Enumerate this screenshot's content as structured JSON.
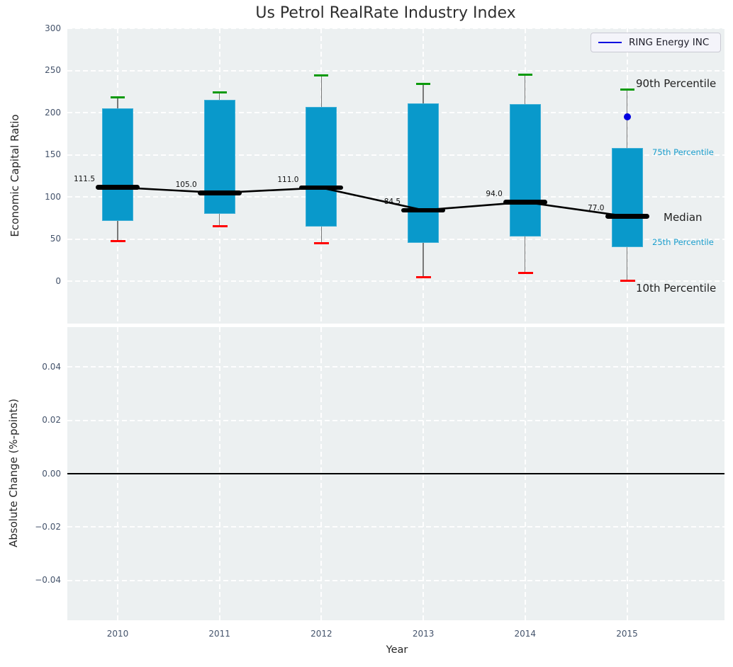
{
  "figure": {
    "title": "Us Petrol RealRate Industry Index",
    "legend": {
      "label": "RING Energy INC",
      "line_color": "#0000e0"
    },
    "top_axis": {
      "ylabel": "Economic Capital Ratio",
      "yticks": [
        {
          "label": "300",
          "value": 300
        },
        {
          "label": "250",
          "value": 250
        },
        {
          "label": "200",
          "value": 200
        },
        {
          "label": "150",
          "value": 150
        },
        {
          "label": "100",
          "value": 100
        },
        {
          "label": "50",
          "value": 50
        },
        {
          "label": "0",
          "value": 0
        }
      ]
    },
    "bottom_axis": {
      "ylabel": "Absolute Change (%-points)",
      "yticks": [
        {
          "label": "0.04",
          "value": 0.04
        },
        {
          "label": "0.02",
          "value": 0.02
        },
        {
          "label": "0.00",
          "value": 0
        },
        {
          "label": "−0.02",
          "value": -0.02
        },
        {
          "label": "−0.04",
          "value": -0.04
        }
      ]
    },
    "xlabel": "Year",
    "annotations": [
      {
        "text": "90th Percentile",
        "anchor": "p90",
        "color": "#1f1f1f",
        "size": 15
      },
      {
        "text": "75th Percentile",
        "anchor": "p75",
        "color": "#1b9ecd",
        "size": 11.5
      },
      {
        "text": "Median",
        "anchor": "median",
        "color": "#1f1f1f",
        "size": 15
      },
      {
        "text": "25th Percentile",
        "anchor": "p25",
        "color": "#1b9ecd",
        "size": 11.5
      },
      {
        "text": "10th Percentile",
        "anchor": "p10",
        "color": "#1f1f1f",
        "size": 15
      }
    ]
  },
  "chart_data": {
    "type": "boxplot",
    "title": "Us Petrol RealRate Industry Index",
    "xlabel": "Year",
    "ylabel_top": "Economic Capital Ratio",
    "ylabel_bottom": "Absolute Change (%-points)",
    "categories": [
      "2010",
      "2011",
      "2012",
      "2013",
      "2014",
      "2015"
    ],
    "ylim_top": [
      -50,
      300
    ],
    "ylim_bottom": [
      -0.055,
      0.055
    ],
    "grid": true,
    "legend_position": "upper right",
    "boxes": [
      {
        "year": "2010",
        "p10": 48,
        "p25": 72,
        "median": 111.5,
        "p75": 205,
        "p90": 218,
        "median_label": "111.5"
      },
      {
        "year": "2011",
        "p10": 65,
        "p25": 80,
        "median": 105.0,
        "p75": 215,
        "p90": 224,
        "median_label": "105.0"
      },
      {
        "year": "2012",
        "p10": 45,
        "p25": 65,
        "median": 111.0,
        "p75": 207,
        "p90": 244,
        "median_label": "111.0"
      },
      {
        "year": "2013",
        "p10": 5,
        "p25": 46,
        "median": 84.5,
        "p75": 211,
        "p90": 234,
        "median_label": "84.5"
      },
      {
        "year": "2014",
        "p10": 10,
        "p25": 53,
        "median": 94.0,
        "p75": 210,
        "p90": 245,
        "median_label": "94.0"
      },
      {
        "year": "2015",
        "p10": 1,
        "p25": 41,
        "median": 77.0,
        "p75": 158,
        "p90": 227,
        "median_label": "77.0"
      }
    ],
    "median_trend_values": [
      111.5,
      105.0,
      111.0,
      84.5,
      94.0,
      77.0
    ],
    "marker": {
      "series": "RING Energy INC",
      "year": "2015",
      "value": 195,
      "color": "#0000e0"
    },
    "bottom_zero_line": 0,
    "colors": {
      "box_fill": "#0999cb",
      "box_edge": "#40b0d7",
      "whisker": "#787878",
      "cap_high": "#0a9a0a",
      "cap_low": "#ff0000",
      "median": "#000000",
      "plot_bg": "#ecf0f1",
      "annotation_cyan": "#1b9ecd"
    }
  }
}
